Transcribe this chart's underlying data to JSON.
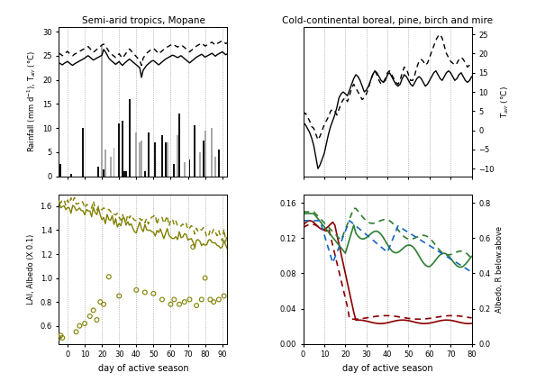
{
  "title_left": "Semi-arid tropics, Mopane",
  "title_right": "Cold-continental boreal, pine, birch and mire",
  "xlabel": "day of active season",
  "ylabel_tl": "Rainfall (mm d$^{-1}$), T$_{air}$ (°C)",
  "ylabel_tr": "T$_{air}$ (°C)",
  "ylabel_bl": "LAI, Albedo (X 0.1)",
  "ylabel_br": "Albedo, R below:above",
  "background_color": "#ffffff",
  "bar_color_dark": "#111111",
  "bar_color_grey": "#aaaaaa",
  "olive": "#808000",
  "dark_red": "#8B0000",
  "dark_green": "#2E7D32",
  "blue": "#1565C0"
}
